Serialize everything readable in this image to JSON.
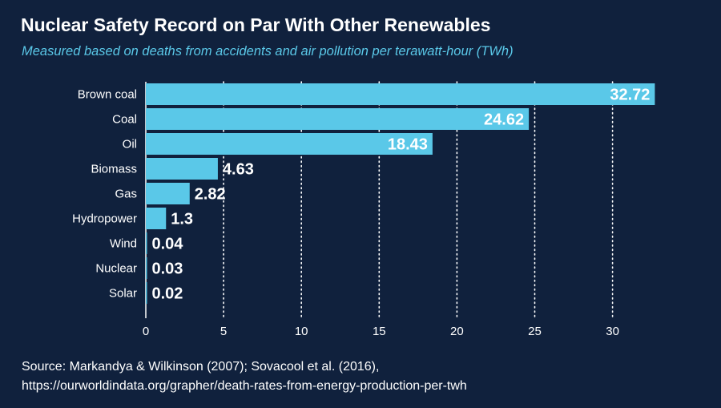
{
  "header": {
    "title": "Nuclear Safety Record on Par With Other Renewables",
    "subtitle": "Measured based on deaths from accidents and air pollution per terawatt-hour (TWh)"
  },
  "footer": {
    "source_line1": "Source: Markandya & Wilkinson (2007); Sovacool et al. (2016),",
    "source_line2": "https://ourworldindata.org/grapher/death-rates-from-energy-production-per-twh"
  },
  "colors": {
    "background": "#10213d",
    "bar": "#5ac8e8",
    "text": "#ffffff",
    "subtitle": "#5ac8e8"
  },
  "chart_data": {
    "type": "bar",
    "orientation": "horizontal",
    "title": "Nuclear Safety Record on Par With Other Renewables",
    "subtitle": "Measured based on deaths from accidents and air pollution per terawatt-hour (TWh)",
    "categories": [
      "Brown coal",
      "Coal",
      "Oil",
      "Biomass",
      "Gas",
      "Hydropower",
      "Wind",
      "Nuclear",
      "Solar"
    ],
    "values": [
      32.72,
      24.62,
      18.43,
      4.63,
      2.82,
      1.3,
      0.04,
      0.03,
      0.02
    ],
    "value_labels": [
      "32.72",
      "24.62",
      "18.43",
      "4.63",
      "2.82",
      "1.3",
      "0.04",
      "0.03",
      "0.02"
    ],
    "xlim": [
      0,
      33
    ],
    "xticks": [
      0,
      5,
      10,
      15,
      20,
      25,
      30
    ],
    "xtick_labels": [
      "0",
      "5",
      "10",
      "15",
      "20",
      "25",
      "30"
    ],
    "xlabel": "",
    "ylabel": "",
    "grid": "vertical dotted",
    "legend": "none"
  }
}
